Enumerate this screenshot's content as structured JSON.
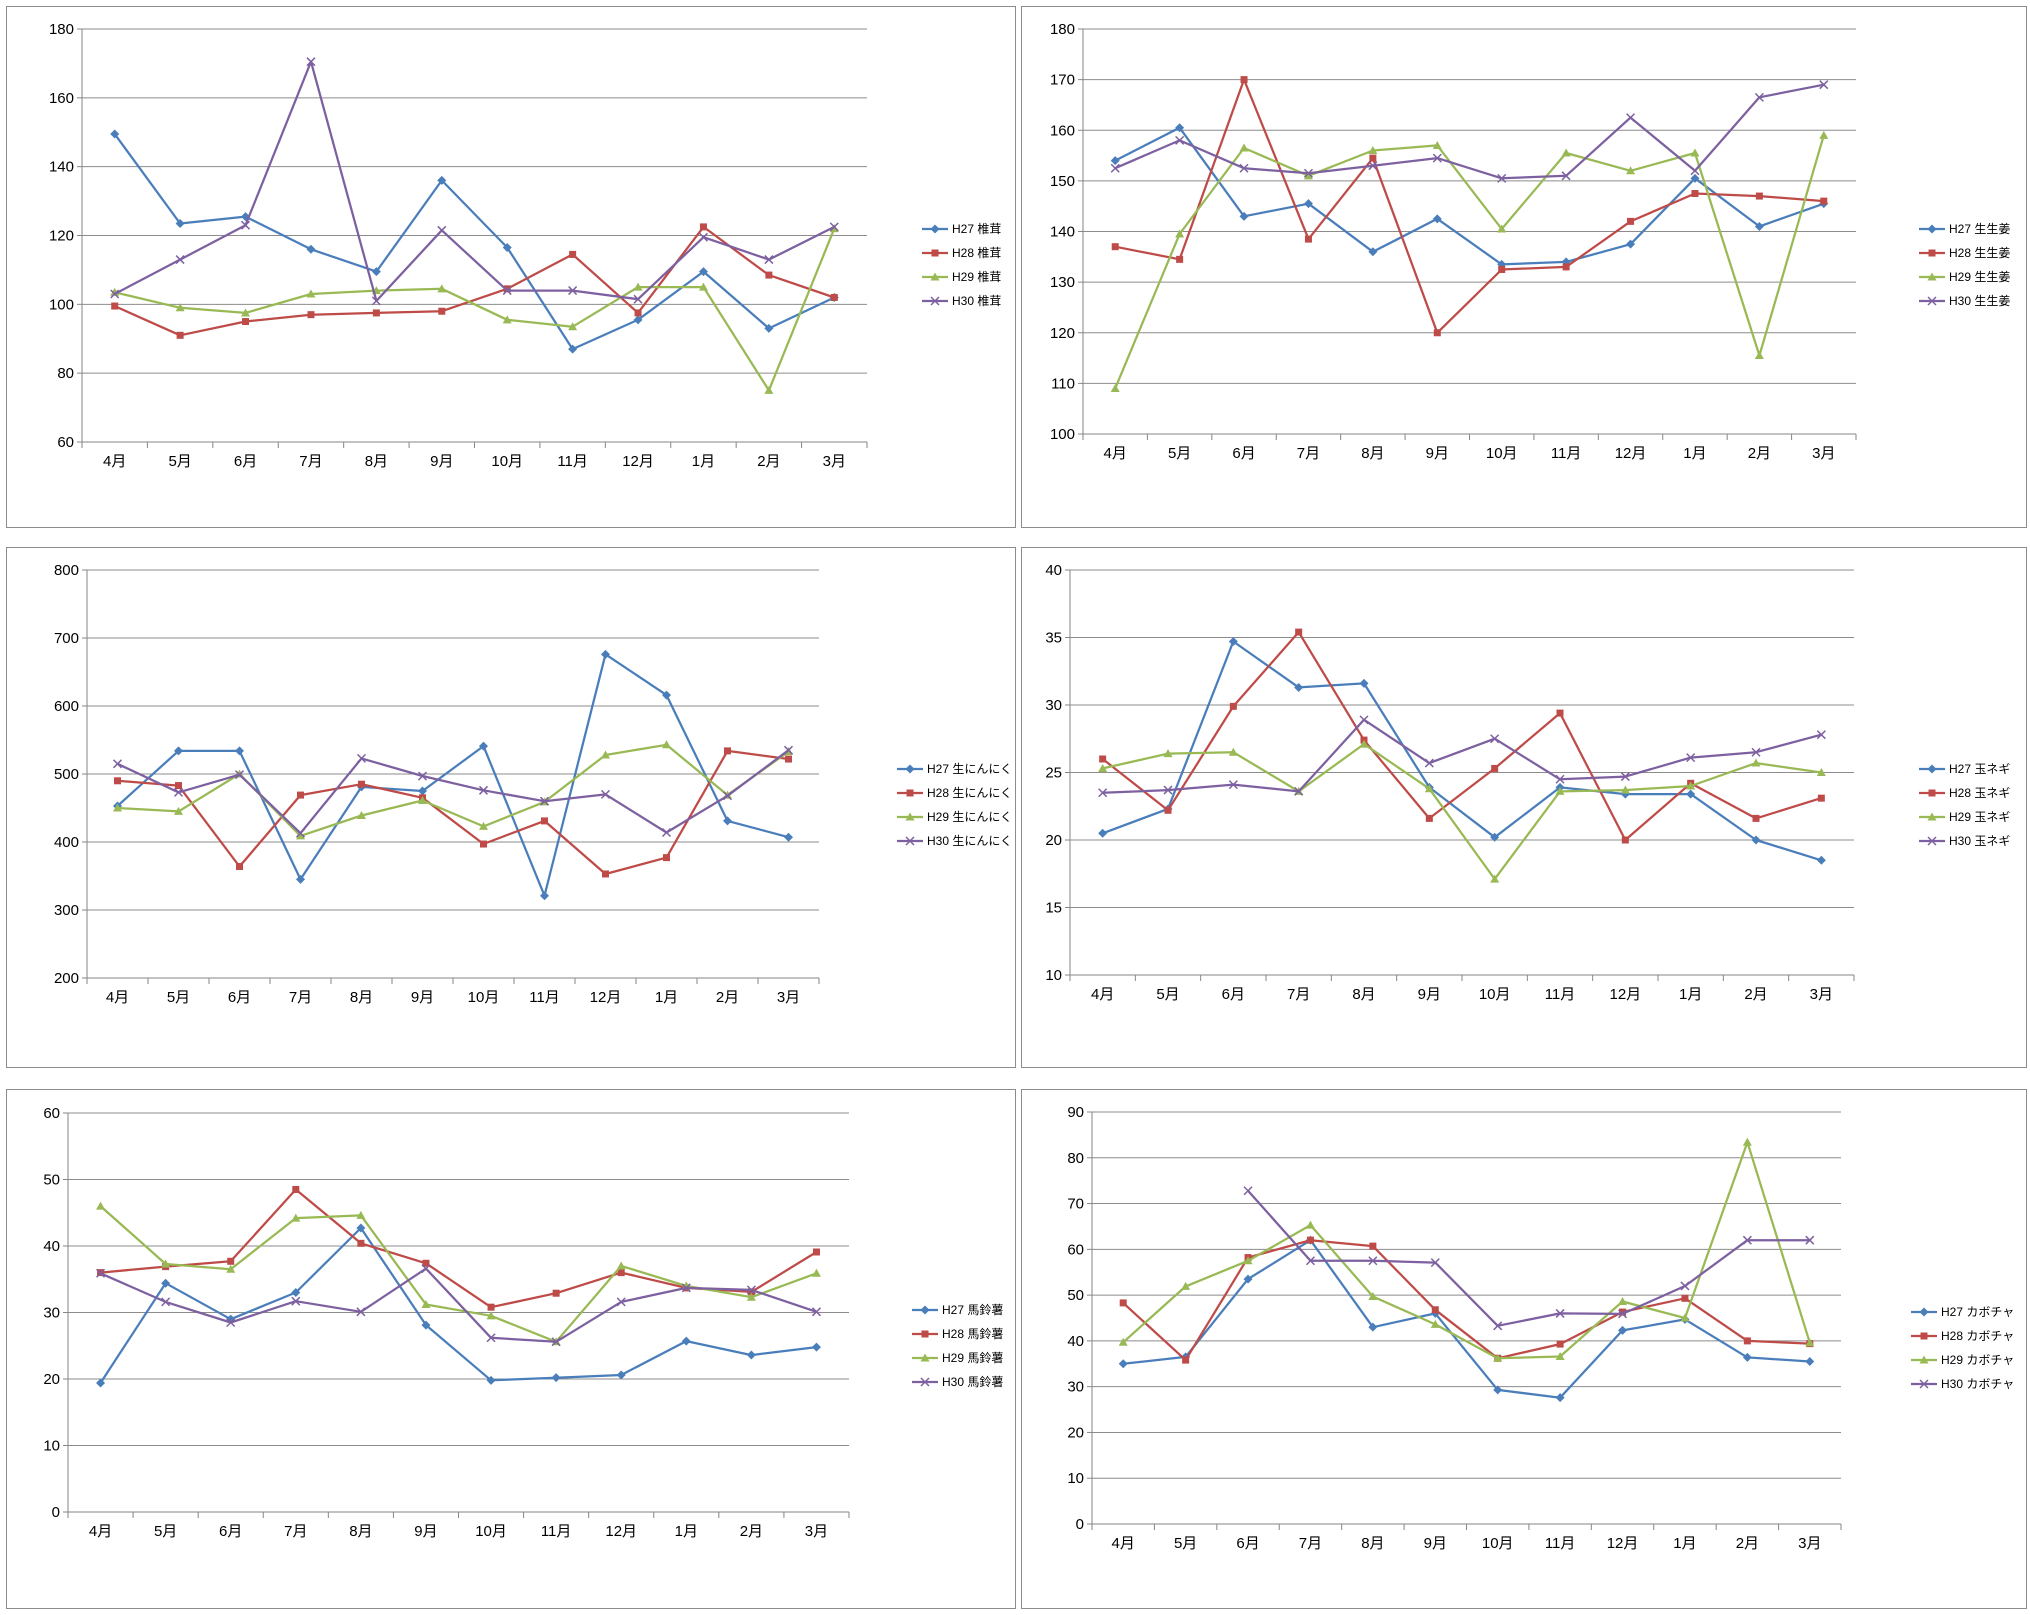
{
  "chart_data": [
    {
      "type": "line",
      "categories": [
        "4月",
        "5月",
        "6月",
        "7月",
        "8月",
        "9月",
        "10月",
        "11月",
        "12月",
        "1月",
        "2月",
        "3月"
      ],
      "ylim": [
        60,
        180
      ],
      "ystep": 20,
      "grid": true,
      "legend": "right",
      "series": [
        {
          "name": "H27 椎茸",
          "color": "#4a7ebb",
          "marker": "diamond",
          "values": [
            149.5,
            123.5,
            125.5,
            116,
            109.5,
            136,
            116.5,
            87,
            95.5,
            109.5,
            93,
            102
          ]
        },
        {
          "name": "H28 椎茸",
          "color": "#be4b48",
          "marker": "square",
          "values": [
            99.5,
            91,
            95,
            97,
            97.5,
            98,
            104.5,
            114.5,
            97.5,
            122.5,
            108.5,
            102
          ]
        },
        {
          "name": "H29 椎茸",
          "color": "#98b954",
          "marker": "triangle",
          "values": [
            103.5,
            99,
            97.5,
            103,
            104,
            104.5,
            95.5,
            93.5,
            105,
            105,
            75,
            122
          ]
        },
        {
          "name": "H30 椎茸",
          "color": "#7d60a0",
          "marker": "x",
          "values": [
            103,
            113,
            123,
            170.5,
            101,
            121.5,
            104,
            104,
            101.5,
            119.5,
            113,
            122.5
          ]
        }
      ]
    },
    {
      "type": "line",
      "categories": [
        "4月",
        "5月",
        "6月",
        "7月",
        "8月",
        "9月",
        "10月",
        "11月",
        "12月",
        "1月",
        "2月",
        "3月"
      ],
      "ylim": [
        100,
        180
      ],
      "ystep": 10,
      "grid": true,
      "legend": "right",
      "series": [
        {
          "name": "H27 生生姜",
          "color": "#4a7ebb",
          "marker": "diamond",
          "values": [
            154,
            160.5,
            143,
            145.5,
            136,
            142.5,
            133.5,
            134,
            137.5,
            150.5,
            141,
            145.5
          ]
        },
        {
          "name": "H28 生生姜",
          "color": "#be4b48",
          "marker": "square",
          "values": [
            137,
            134.5,
            170,
            138.5,
            154.5,
            120,
            132.5,
            133,
            142,
            147.5,
            147,
            146
          ]
        },
        {
          "name": "H29 生生姜",
          "color": "#98b954",
          "marker": "triangle",
          "values": [
            109,
            139.5,
            156.5,
            151,
            156,
            157,
            140.5,
            155.5,
            152,
            155.5,
            115.5,
            159
          ]
        },
        {
          "name": "H30 生生姜",
          "color": "#7d60a0",
          "marker": "x",
          "values": [
            152.5,
            158,
            152.5,
            151.5,
            153,
            154.5,
            150.5,
            151,
            162.5,
            152,
            166.5,
            169
          ]
        }
      ]
    },
    {
      "type": "line",
      "categories": [
        "4月",
        "5月",
        "6月",
        "7月",
        "8月",
        "9月",
        "10月",
        "11月",
        "12月",
        "1月",
        "2月",
        "3月"
      ],
      "ylim": [
        200,
        800
      ],
      "ystep": 100,
      "grid": true,
      "legend": "right",
      "series": [
        {
          "name": "H27 生にんにく",
          "color": "#4a7ebb",
          "marker": "diamond",
          "values": [
            453,
            534,
            534,
            345,
            481,
            475,
            541,
            321,
            676,
            616,
            431,
            407
          ]
        },
        {
          "name": "H28 生にんにく",
          "color": "#be4b48",
          "marker": "square",
          "values": [
            490,
            483,
            364,
            469,
            485,
            465,
            397,
            431,
            353,
            377,
            534,
            522
          ]
        },
        {
          "name": "H29 生にんにく",
          "color": "#98b954",
          "marker": "triangle",
          "values": [
            450,
            445,
            500,
            409,
            439,
            461,
            423,
            459,
            528,
            543,
            469,
            533
          ]
        },
        {
          "name": "H30 生にんにく",
          "color": "#7d60a0",
          "marker": "x",
          "values": [
            515,
            473,
            499,
            413,
            523,
            497,
            476,
            460,
            470,
            414,
            468,
            535
          ]
        }
      ]
    },
    {
      "type": "line",
      "categories": [
        "4月",
        "5月",
        "6月",
        "7月",
        "8月",
        "9月",
        "10月",
        "11月",
        "12月",
        "1月",
        "2月",
        "3月"
      ],
      "ylim": [
        10,
        40
      ],
      "ystep": 5,
      "grid": true,
      "legend": "right",
      "series": [
        {
          "name": "H27 玉ネギ",
          "color": "#4a7ebb",
          "marker": "diamond",
          "values": [
            20.5,
            22.3,
            34.7,
            31.3,
            31.6,
            23.9,
            20.2,
            23.9,
            23.4,
            23.4,
            20,
            18.5
          ]
        },
        {
          "name": "H28 玉ネギ",
          "color": "#be4b48",
          "marker": "square",
          "values": [
            26,
            22.2,
            29.9,
            35.4,
            27.4,
            21.6,
            25.3,
            29.4,
            20,
            24.2,
            21.6,
            23.1
          ]
        },
        {
          "name": "H29 玉ネギ",
          "color": "#98b954",
          "marker": "triangle",
          "values": [
            25.3,
            26.4,
            26.5,
            23.6,
            27.1,
            23.8,
            17.1,
            23.6,
            23.7,
            24,
            25.7,
            25
          ]
        },
        {
          "name": "H30 玉ネギ",
          "color": "#7d60a0",
          "marker": "x",
          "values": [
            23.5,
            23.7,
            24.1,
            23.6,
            28.9,
            25.7,
            27.5,
            24.5,
            24.7,
            26.1,
            26.5,
            27.8
          ]
        }
      ]
    },
    {
      "type": "line",
      "categories": [
        "4月",
        "5月",
        "6月",
        "7月",
        "8月",
        "9月",
        "10月",
        "11月",
        "12月",
        "1月",
        "2月",
        "3月"
      ],
      "ylim": [
        0,
        60
      ],
      "ystep": 10,
      "grid": true,
      "legend": "right",
      "series": [
        {
          "name": "H27 馬鈴薯",
          "color": "#4a7ebb",
          "marker": "diamond",
          "values": [
            19.4,
            34.4,
            29,
            33,
            42.7,
            28.1,
            19.8,
            20.2,
            20.6,
            25.7,
            23.6,
            24.8
          ]
        },
        {
          "name": "H28 馬鈴薯",
          "color": "#be4b48",
          "marker": "square",
          "values": [
            36,
            36.9,
            37.7,
            48.5,
            40.4,
            37.4,
            30.8,
            32.9,
            36,
            33.7,
            33.1,
            39.1
          ]
        },
        {
          "name": "H29 馬鈴薯",
          "color": "#98b954",
          "marker": "triangle",
          "values": [
            46,
            37.3,
            36.5,
            44.2,
            44.6,
            31.2,
            29.5,
            25.6,
            37,
            34,
            32.3,
            35.9
          ]
        },
        {
          "name": "H30 馬鈴薯",
          "color": "#7d60a0",
          "marker": "x",
          "values": [
            35.9,
            31.6,
            28.5,
            31.7,
            30.1,
            36.6,
            26.2,
            25.6,
            31.6,
            33.7,
            33.4,
            30.1
          ]
        }
      ]
    },
    {
      "type": "line",
      "categories": [
        "4月",
        "5月",
        "6月",
        "7月",
        "8月",
        "9月",
        "10月",
        "11月",
        "12月",
        "1月",
        "2月",
        "3月"
      ],
      "ylim": [
        0,
        90
      ],
      "ystep": 10,
      "grid": true,
      "legend": "right",
      "series": [
        {
          "name": "H27 カボチャ",
          "color": "#4a7ebb",
          "marker": "diamond",
          "values": [
            35,
            36.5,
            53.5,
            62,
            43,
            46,
            29.3,
            27.6,
            42.3,
            44.7,
            36.4,
            35.5
          ]
        },
        {
          "name": "H28 カボチャ",
          "color": "#be4b48",
          "marker": "square",
          "values": [
            48.3,
            35.8,
            58.2,
            62,
            60.7,
            46.8,
            36.2,
            39.3,
            46.3,
            49.3,
            40,
            39.4
          ]
        },
        {
          "name": "H29 カボチャ",
          "color": "#98b954",
          "marker": "triangle",
          "values": [
            39.7,
            51.9,
            57.5,
            65.3,
            49.7,
            43.6,
            36.2,
            36.6,
            48.6,
            45,
            83.4,
            39.6
          ]
        },
        {
          "name": "H30 カボチャ",
          "color": "#7d60a0",
          "marker": "x",
          "values": [
            null,
            null,
            72.8,
            57.5,
            57.5,
            57.1,
            43.3,
            46,
            45.9,
            52,
            62,
            62
          ]
        }
      ]
    }
  ]
}
